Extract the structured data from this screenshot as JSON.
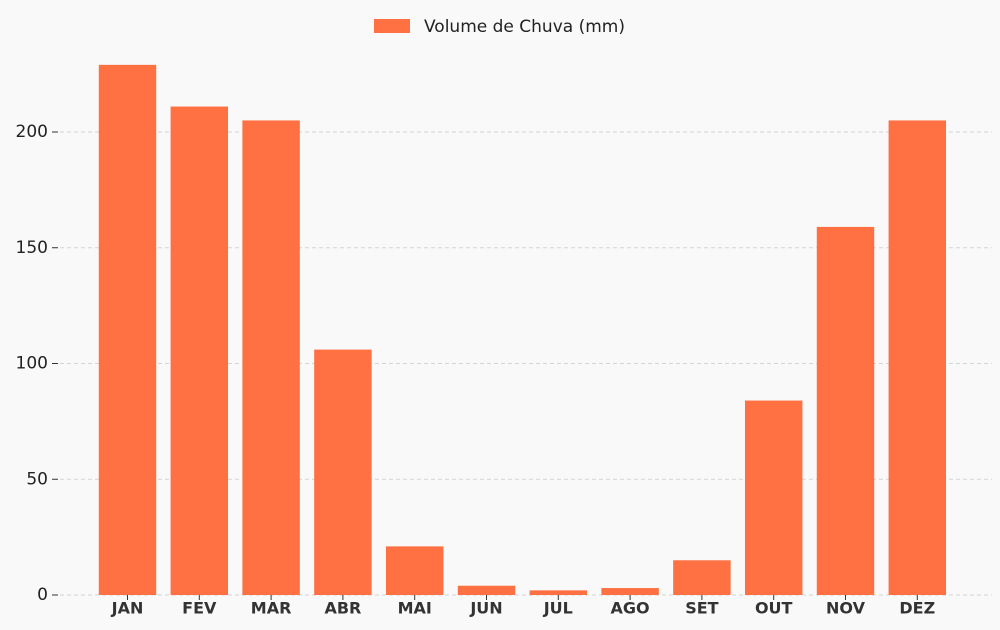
{
  "chart_data": {
    "type": "bar",
    "categories": [
      "JAN",
      "FEV",
      "MAR",
      "ABR",
      "MAI",
      "JUN",
      "JUL",
      "AGO",
      "SET",
      "OUT",
      "NOV",
      "DEZ"
    ],
    "series": [
      {
        "name": "Volume de Chuva (mm)",
        "color": "#ff7043",
        "values": [
          229,
          211,
          205,
          106,
          21,
          4,
          2,
          3,
          15,
          84,
          159,
          205
        ]
      }
    ],
    "ylim": [
      0,
      240
    ],
    "yticks": [
      0,
      50,
      100,
      150,
      200
    ],
    "grid": true,
    "legend": "top"
  }
}
